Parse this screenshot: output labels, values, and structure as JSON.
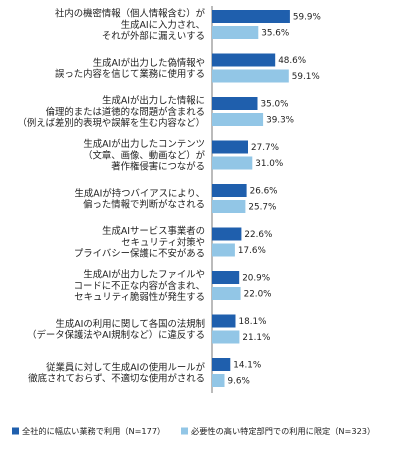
{
  "chart_data": {
    "type": "bar",
    "orientation": "horizontal",
    "categories": [
      [
        "社内の機密情報（個人情報含む）が",
        "生成AIに入力され、",
        "それが外部に漏えいする"
      ],
      [
        "生成AIが出力した偽情報や",
        "誤った内容を信じて業務に使用する"
      ],
      [
        "生成AIが出力した情報に",
        "倫理的または道徳的な問題が含まれる",
        "（例えば差別的表現や誤解を生む内容など）"
      ],
      [
        "生成AIが出力したコンテンツ",
        "（文章、画像、動画など）が",
        "著作権侵害につながる"
      ],
      [
        "生成AIが持つバイアスにより、",
        "偏った情報で判断がなされる"
      ],
      [
        "生成AIサービス事業者の",
        "セキュリティ対策や",
        "プライバシー保護に不安がある"
      ],
      [
        "生成AIが出力したファイルや",
        "コードに不正な内容が含まれ、",
        "セキュリティ脆弱性が発生する"
      ],
      [
        "生成AIの利用に関して各国の法規制",
        "（データ保護法やAI規制など）に違反する"
      ],
      [
        "従業員に対して生成AIの使用ルールが",
        "徹底されておらず、不適切な使用がされる"
      ]
    ],
    "series": [
      {
        "name": "全社的に幅広い業務で利用（N=177）",
        "color": "#1f5fad",
        "values": [
          59.9,
          48.6,
          35.0,
          27.7,
          26.6,
          22.6,
          20.9,
          18.1,
          14.1
        ]
      },
      {
        "name": "必要性の高い特定部門での利用に限定（N=323）",
        "color": "#92c6e6",
        "values": [
          35.6,
          59.1,
          39.3,
          31.0,
          25.7,
          17.6,
          22.0,
          21.1,
          9.6
        ]
      }
    ],
    "value_suffix": "%",
    "xlim": [
      0,
      100
    ],
    "grid": false,
    "legend_position": "bottom"
  }
}
